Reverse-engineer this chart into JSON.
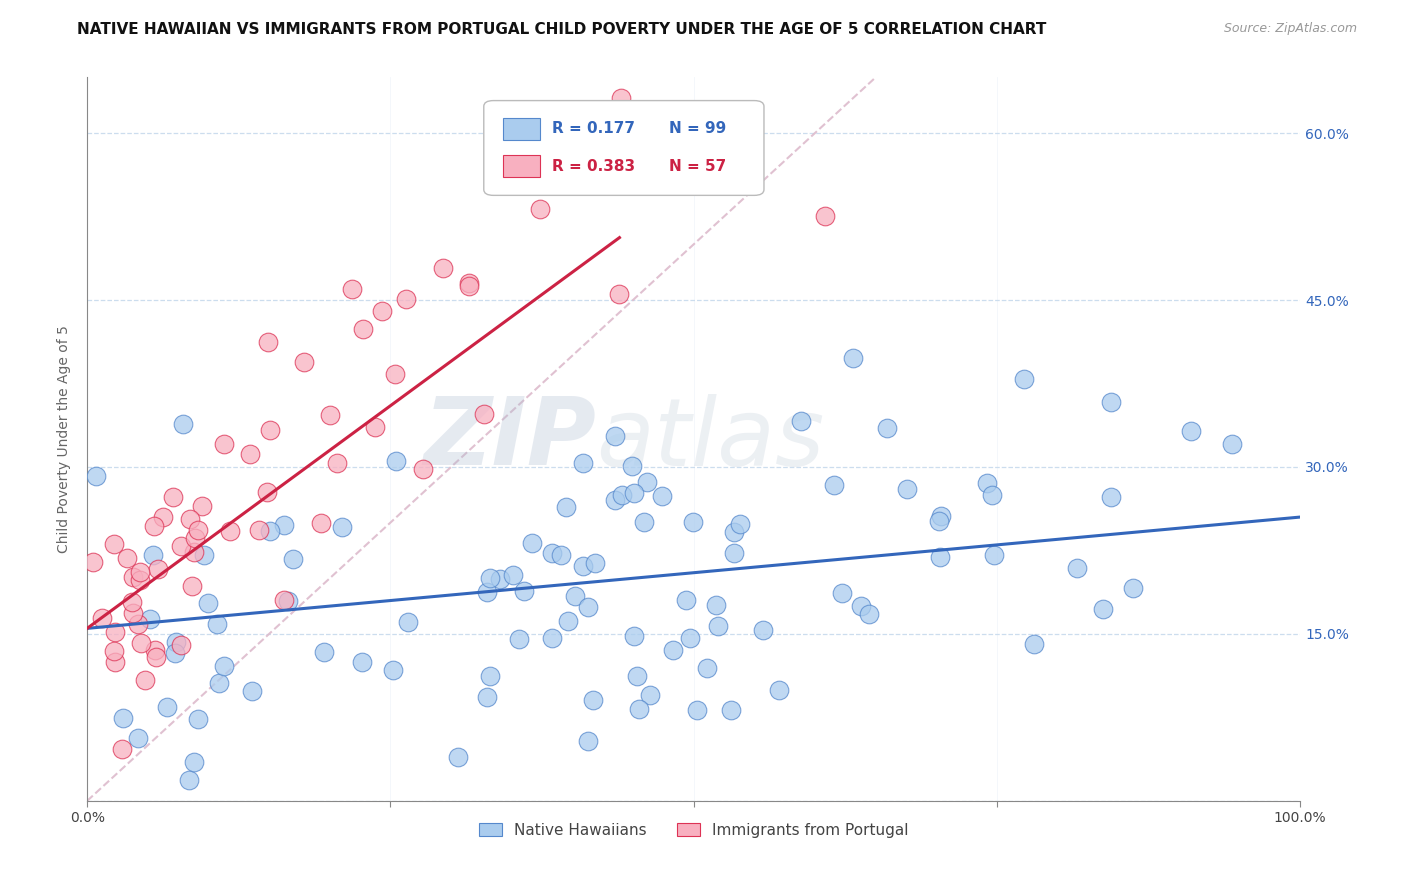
{
  "title": "NATIVE HAWAIIAN VS IMMIGRANTS FROM PORTUGAL CHILD POVERTY UNDER THE AGE OF 5 CORRELATION CHART",
  "source": "Source: ZipAtlas.com",
  "ylabel": "Child Poverty Under the Age of 5",
  "xlim": [
    0.0,
    1.0
  ],
  "ylim": [
    0.0,
    0.65
  ],
  "xticks": [
    0.0,
    0.25,
    0.5,
    0.75,
    1.0
  ],
  "xticklabels": [
    "0.0%",
    "",
    "",
    "",
    "100.0%"
  ],
  "yticks": [
    0.0,
    0.15,
    0.3,
    0.45,
    0.6
  ],
  "yticklabels": [
    "",
    "15.0%",
    "30.0%",
    "45.0%",
    "60.0%"
  ],
  "blue_color": "#aaccee",
  "pink_color": "#f8b0c0",
  "blue_edge_color": "#5588cc",
  "pink_edge_color": "#dd3355",
  "blue_line_color": "#3366bb",
  "pink_line_color": "#cc2244",
  "diag_line_color": "#ddbbcc",
  "legend_R1": "R = 0.177",
  "legend_N1": "N = 99",
  "legend_R2": "R = 0.383",
  "legend_N2": "N = 57",
  "legend_label1": "Native Hawaiians",
  "legend_label2": "Immigrants from Portugal",
  "blue_R": 0.177,
  "blue_N": 99,
  "pink_R": 0.383,
  "pink_N": 57,
  "blue_intercept": 0.155,
  "blue_slope": 0.1,
  "pink_intercept": 0.155,
  "pink_slope": 0.8,
  "title_fontsize": 11,
  "axis_label_fontsize": 10,
  "tick_fontsize": 10,
  "background_color": "#ffffff",
  "grid_color": "#ccddee",
  "watermark_zip": "ZIP",
  "watermark_atlas": "atlas",
  "seed": 12
}
